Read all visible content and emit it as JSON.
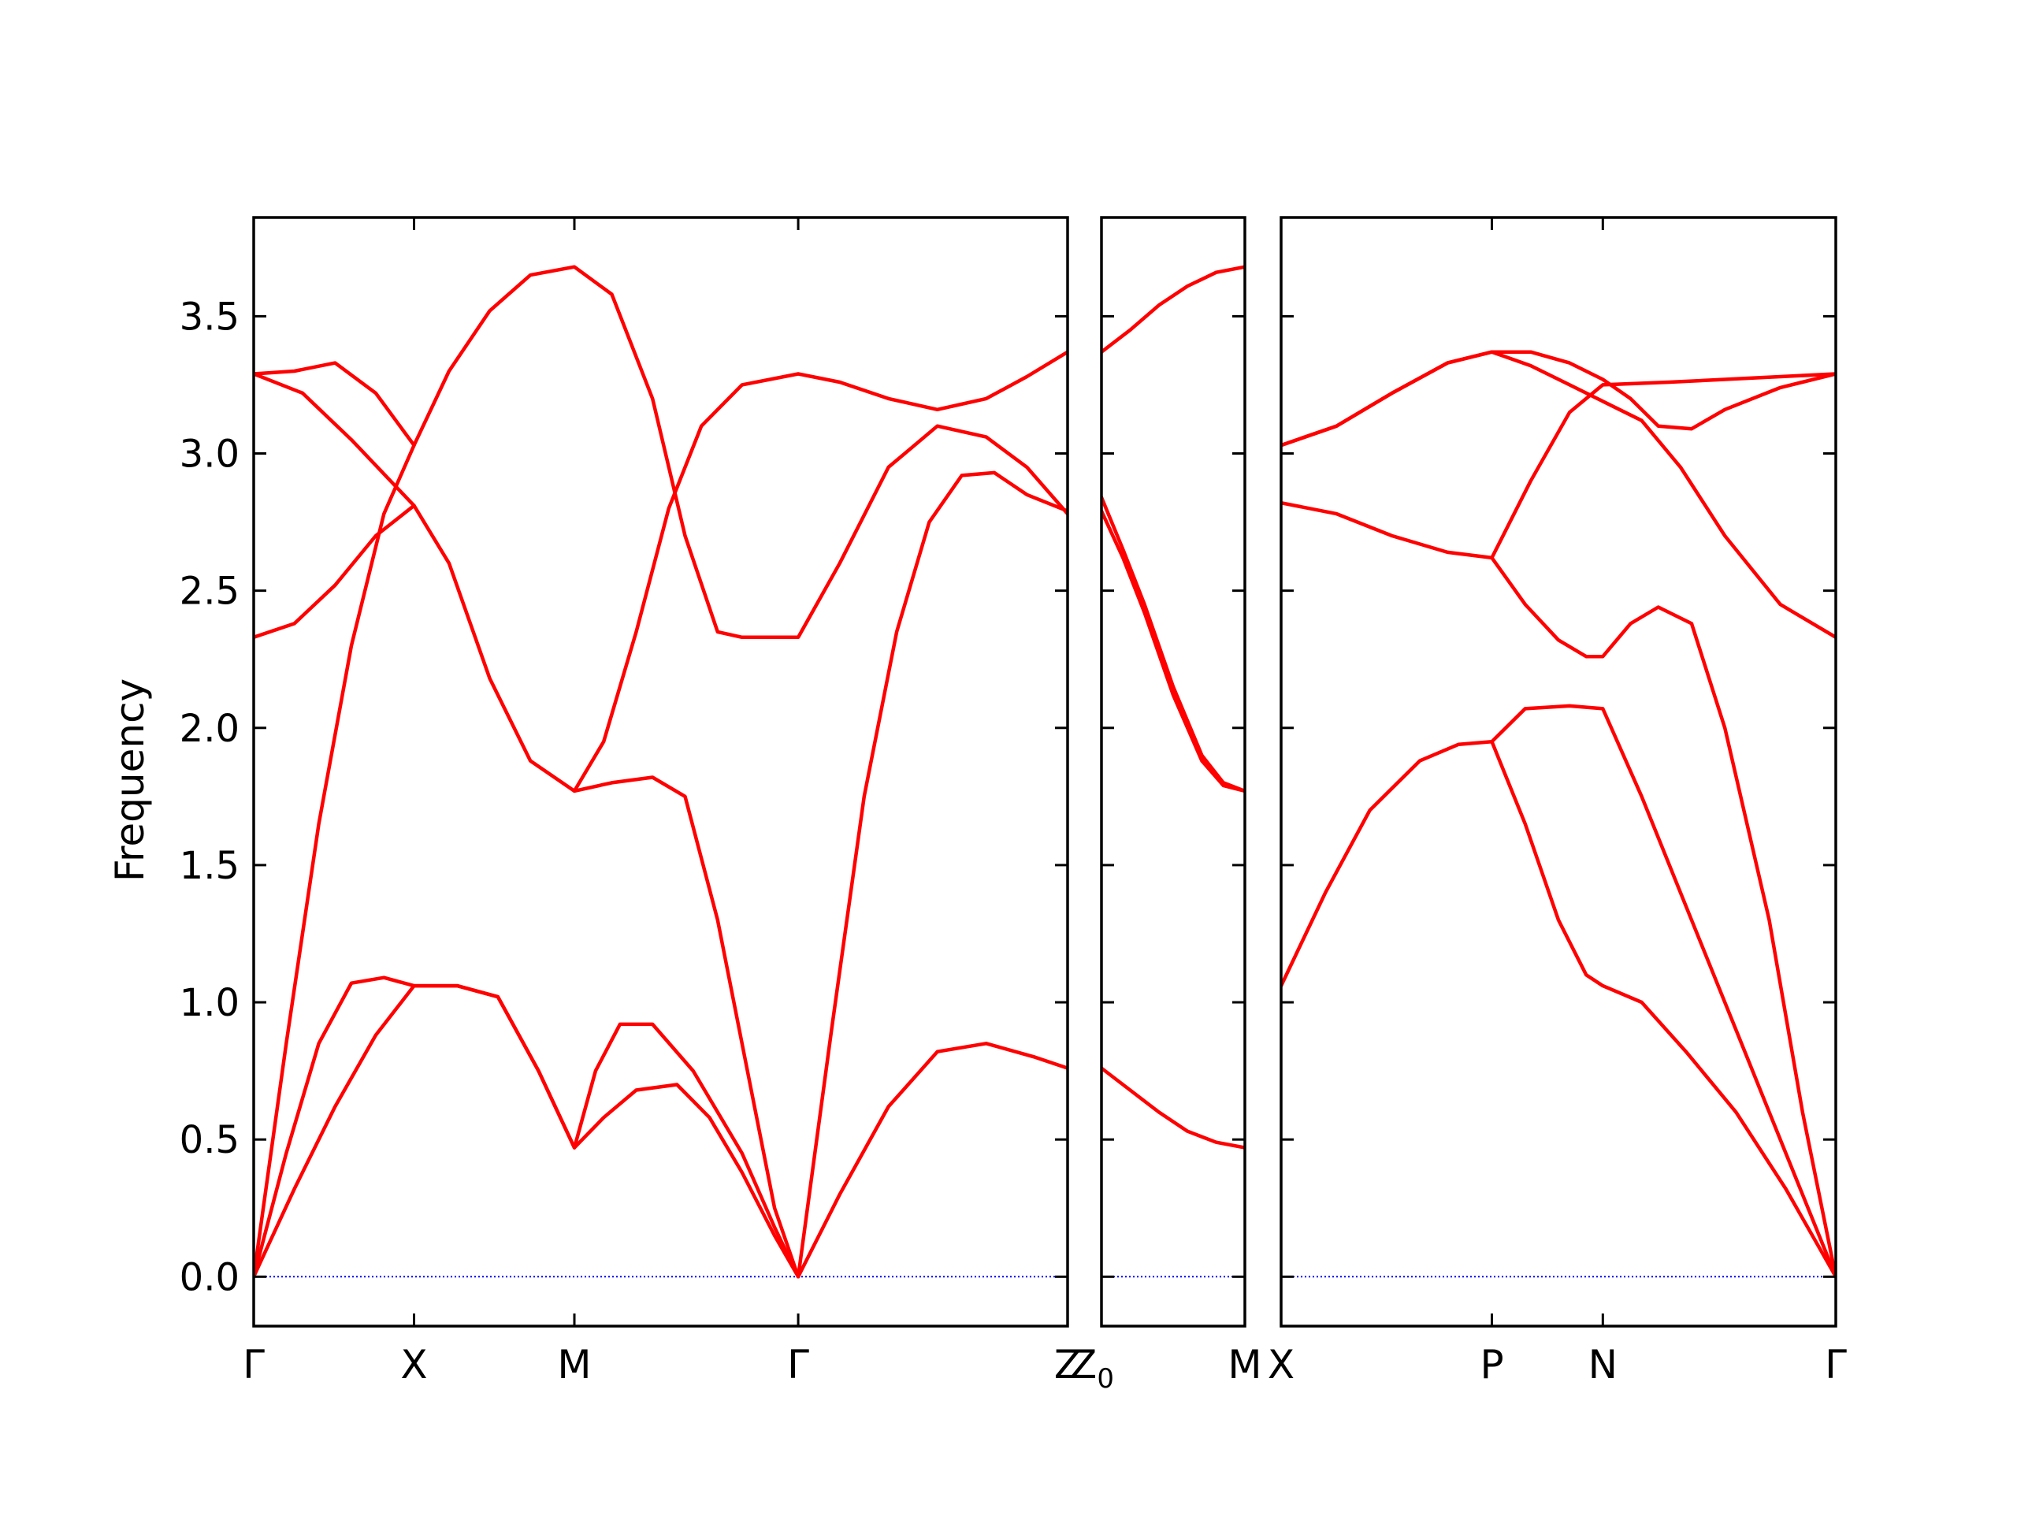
{
  "chart_data": {
    "type": "line",
    "ylabel": "Frequency",
    "ylim": [
      -0.18,
      3.86
    ],
    "yticks": [
      0.0,
      0.5,
      1.0,
      1.5,
      2.0,
      2.5,
      3.0,
      3.5
    ],
    "ytick_labels": [
      "0.0",
      "0.5",
      "1.0",
      "1.5",
      "2.0",
      "2.5",
      "3.0",
      "3.5"
    ],
    "line_color": "#ff0000",
    "zero_line_color": "#0000ff",
    "panels": [
      {
        "path": "Γ–X–M–Γ–Z",
        "xlim": [
          0,
          1
        ],
        "ticks": [
          {
            "x": 0.0,
            "label": "Γ"
          },
          {
            "x": 0.197,
            "label": "X"
          },
          {
            "x": 0.394,
            "label": "M"
          },
          {
            "x": 0.669,
            "label": "Γ"
          },
          {
            "x": 1.0,
            "label": "Z"
          }
        ],
        "bands": [
          [
            [
              0,
              0
            ],
            [
              0.05,
              0.32
            ],
            [
              0.1,
              0.62
            ],
            [
              0.15,
              0.88
            ],
            [
              0.197,
              1.06
            ],
            [
              0.25,
              1.06
            ],
            [
              0.3,
              1.02
            ],
            [
              0.35,
              0.75
            ],
            [
              0.394,
              0.47
            ],
            [
              0.43,
              0.58
            ],
            [
              0.47,
              0.68
            ],
            [
              0.52,
              0.7
            ],
            [
              0.56,
              0.58
            ],
            [
              0.6,
              0.38
            ],
            [
              0.64,
              0.15
            ],
            [
              0.669,
              0.0
            ]
          ],
          [
            [
              0,
              0
            ],
            [
              0.04,
              0.45
            ],
            [
              0.08,
              0.85
            ],
            [
              0.12,
              1.07
            ],
            [
              0.16,
              1.09
            ],
            [
              0.197,
              1.06
            ],
            [
              0.25,
              1.06
            ],
            [
              0.3,
              1.02
            ],
            [
              0.35,
              0.75
            ],
            [
              0.394,
              0.47
            ],
            [
              0.42,
              0.75
            ],
            [
              0.45,
              0.92
            ],
            [
              0.49,
              0.92
            ],
            [
              0.54,
              0.75
            ],
            [
              0.6,
              0.45
            ],
            [
              0.64,
              0.18
            ],
            [
              0.669,
              0.0
            ]
          ],
          [
            [
              0.669,
              0.0
            ],
            [
              0.72,
              0.3
            ],
            [
              0.78,
              0.62
            ],
            [
              0.84,
              0.82
            ],
            [
              0.9,
              0.85
            ],
            [
              0.96,
              0.8
            ],
            [
              1.0,
              0.76
            ]
          ],
          [
            [
              0,
              0
            ],
            [
              0.04,
              0.85
            ],
            [
              0.08,
              1.65
            ],
            [
              0.12,
              2.3
            ],
            [
              0.16,
              2.78
            ],
            [
              0.197,
              3.03
            ],
            [
              0.24,
              3.3
            ],
            [
              0.29,
              3.52
            ],
            [
              0.34,
              3.65
            ],
            [
              0.394,
              3.68
            ],
            [
              0.44,
              3.58
            ],
            [
              0.49,
              3.2
            ],
            [
              0.53,
              2.7
            ],
            [
              0.57,
              2.35
            ],
            [
              0.6,
              2.33
            ],
            [
              0.669,
              2.33
            ],
            [
              0.72,
              2.6
            ],
            [
              0.78,
              2.95
            ],
            [
              0.84,
              3.1
            ],
            [
              0.9,
              3.06
            ],
            [
              0.95,
              2.95
            ],
            [
              1.0,
              2.78
            ]
          ],
          [
            [
              0.669,
              0.0
            ],
            [
              0.71,
              0.9
            ],
            [
              0.75,
              1.75
            ],
            [
              0.79,
              2.35
            ],
            [
              0.83,
              2.75
            ],
            [
              0.87,
              2.92
            ],
            [
              0.91,
              2.93
            ],
            [
              0.95,
              2.85
            ],
            [
              1.0,
              2.79
            ]
          ],
          [
            [
              0,
              2.33
            ],
            [
              0.05,
              2.38
            ],
            [
              0.1,
              2.52
            ],
            [
              0.15,
              2.7
            ],
            [
              0.197,
              2.81
            ],
            [
              0.24,
              2.6
            ],
            [
              0.29,
              2.18
            ],
            [
              0.34,
              1.88
            ],
            [
              0.394,
              1.77
            ],
            [
              0.44,
              1.8
            ],
            [
              0.49,
              1.82
            ],
            [
              0.53,
              1.75
            ],
            [
              0.57,
              1.3
            ],
            [
              0.61,
              0.7
            ],
            [
              0.64,
              0.25
            ],
            [
              0.669,
              0.0
            ]
          ],
          [
            [
              0.394,
              1.77
            ],
            [
              0.43,
              1.95
            ],
            [
              0.47,
              2.35
            ],
            [
              0.51,
              2.8
            ],
            [
              0.55,
              3.1
            ],
            [
              0.6,
              3.25
            ],
            [
              0.669,
              3.29
            ],
            [
              0.72,
              3.26
            ],
            [
              0.78,
              3.2
            ],
            [
              0.84,
              3.16
            ],
            [
              0.9,
              3.2
            ],
            [
              0.95,
              3.28
            ],
            [
              1.0,
              3.37
            ]
          ],
          [
            [
              0,
              3.29
            ],
            [
              0.05,
              3.3
            ],
            [
              0.1,
              3.33
            ],
            [
              0.15,
              3.22
            ],
            [
              0.197,
              3.03
            ]
          ],
          [
            [
              0,
              3.29
            ],
            [
              0.06,
              3.22
            ],
            [
              0.12,
              3.05
            ],
            [
              0.197,
              2.81
            ]
          ]
        ]
      },
      {
        "path": "Z0–M",
        "xlim": [
          0,
          1
        ],
        "ticks": [
          {
            "x": 0.0,
            "label": "Z",
            "sub": "0"
          },
          {
            "x": 1.0,
            "label": "M"
          }
        ],
        "bands": [
          [
            [
              0,
              3.37
            ],
            [
              0.2,
              3.45
            ],
            [
              0.4,
              3.54
            ],
            [
              0.6,
              3.61
            ],
            [
              0.8,
              3.66
            ],
            [
              1.0,
              3.68
            ]
          ],
          [
            [
              0,
              2.84
            ],
            [
              0.15,
              2.65
            ],
            [
              0.3,
              2.45
            ],
            [
              0.5,
              2.15
            ],
            [
              0.7,
              1.9
            ],
            [
              0.85,
              1.8
            ],
            [
              1.0,
              1.77
            ]
          ],
          [
            [
              0,
              2.79
            ],
            [
              0.15,
              2.62
            ],
            [
              0.3,
              2.42
            ],
            [
              0.5,
              2.12
            ],
            [
              0.7,
              1.88
            ],
            [
              0.85,
              1.79
            ],
            [
              1.0,
              1.77
            ]
          ],
          [
            [
              0,
              0.76
            ],
            [
              0.2,
              0.68
            ],
            [
              0.4,
              0.6
            ],
            [
              0.6,
              0.53
            ],
            [
              0.8,
              0.49
            ],
            [
              1.0,
              0.47
            ]
          ]
        ]
      },
      {
        "path": "X–P–N–Γ",
        "xlim": [
          0,
          1
        ],
        "ticks": [
          {
            "x": 0.0,
            "label": "X"
          },
          {
            "x": 0.38,
            "label": "P"
          },
          {
            "x": 0.58,
            "label": "N"
          },
          {
            "x": 1.0,
            "label": "Γ"
          }
        ],
        "bands": [
          [
            [
              0,
              3.03
            ],
            [
              0.1,
              3.1
            ],
            [
              0.2,
              3.22
            ],
            [
              0.3,
              3.33
            ],
            [
              0.38,
              3.37
            ],
            [
              0.45,
              3.37
            ],
            [
              0.52,
              3.33
            ],
            [
              0.58,
              3.27
            ],
            [
              0.63,
              3.2
            ],
            [
              0.68,
              3.1
            ],
            [
              0.74,
              3.09
            ],
            [
              0.8,
              3.16
            ],
            [
              0.9,
              3.24
            ],
            [
              1.0,
              3.29
            ]
          ],
          [
            [
              0,
              3.03
            ],
            [
              0.1,
              3.1
            ],
            [
              0.2,
              3.22
            ],
            [
              0.3,
              3.33
            ],
            [
              0.38,
              3.37
            ],
            [
              0.45,
              3.32
            ],
            [
              0.52,
              3.25
            ],
            [
              0.58,
              3.19
            ],
            [
              0.65,
              3.12
            ],
            [
              0.72,
              2.95
            ],
            [
              0.8,
              2.7
            ],
            [
              0.9,
              2.45
            ],
            [
              1.0,
              2.33
            ]
          ],
          [
            [
              0,
              2.82
            ],
            [
              0.1,
              2.78
            ],
            [
              0.2,
              2.7
            ],
            [
              0.3,
              2.64
            ],
            [
              0.38,
              2.62
            ],
            [
              0.45,
              2.9
            ],
            [
              0.52,
              3.15
            ],
            [
              0.58,
              3.25
            ],
            [
              0.7,
              3.26
            ],
            [
              0.8,
              3.27
            ],
            [
              0.9,
              3.28
            ],
            [
              1.0,
              3.29
            ]
          ],
          [
            [
              0,
              1.06
            ],
            [
              0.08,
              1.4
            ],
            [
              0.16,
              1.7
            ],
            [
              0.25,
              1.88
            ],
            [
              0.32,
              1.94
            ],
            [
              0.38,
              1.95
            ],
            [
              0.44,
              2.07
            ],
            [
              0.52,
              2.08
            ],
            [
              0.58,
              2.07
            ],
            [
              0.65,
              1.75
            ],
            [
              0.73,
              1.35
            ],
            [
              0.82,
              0.9
            ],
            [
              0.91,
              0.45
            ],
            [
              1.0,
              0.0
            ]
          ],
          [
            [
              0.38,
              1.95
            ],
            [
              0.44,
              1.65
            ],
            [
              0.5,
              1.3
            ],
            [
              0.55,
              1.1
            ],
            [
              0.58,
              1.06
            ],
            [
              0.65,
              1.0
            ],
            [
              0.73,
              0.82
            ],
            [
              0.82,
              0.6
            ],
            [
              0.91,
              0.32
            ],
            [
              1.0,
              0.0
            ]
          ],
          [
            [
              0.38,
              2.62
            ],
            [
              0.44,
              2.45
            ],
            [
              0.5,
              2.32
            ],
            [
              0.55,
              2.26
            ],
            [
              0.58,
              2.26
            ],
            [
              0.63,
              2.38
            ],
            [
              0.68,
              2.44
            ],
            [
              0.74,
              2.38
            ],
            [
              0.8,
              2.0
            ],
            [
              0.88,
              1.3
            ],
            [
              0.94,
              0.6
            ],
            [
              1.0,
              0.0
            ]
          ]
        ]
      }
    ]
  }
}
